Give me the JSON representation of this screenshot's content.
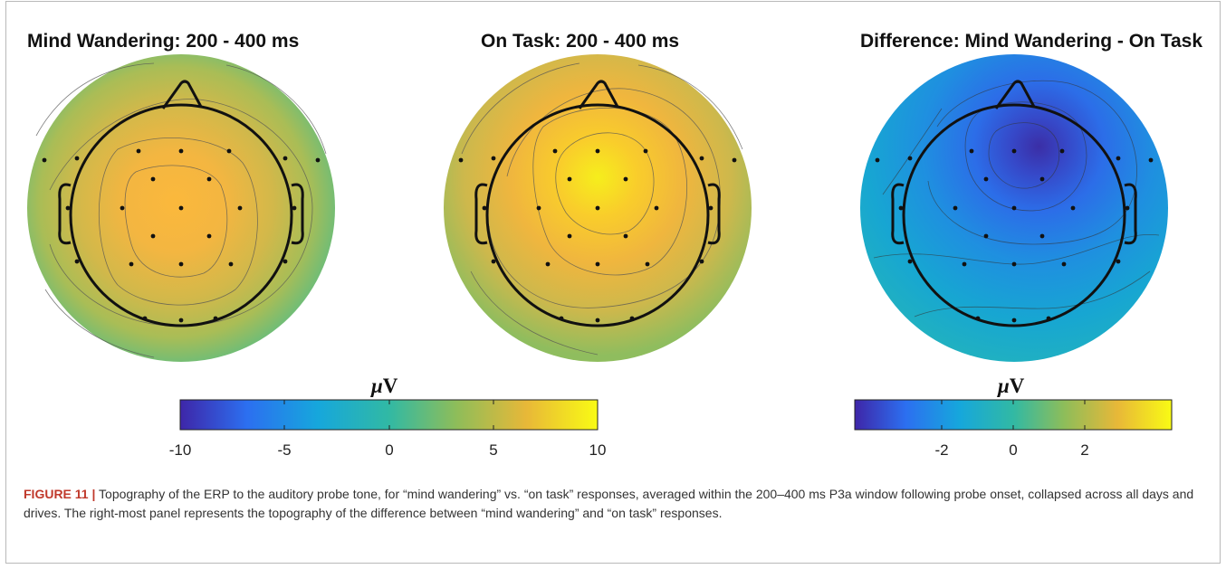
{
  "panels": [
    {
      "title": "Mind Wandering: 200 - 400 ms"
    },
    {
      "title": "On Task: 200 - 400 ms"
    },
    {
      "title": "Difference: Mind Wandering - On Task"
    }
  ],
  "colorbars": [
    {
      "unit_symbol": "μ",
      "unit_letter": "V",
      "ticks": [
        "-10",
        "-5",
        "0",
        "5",
        "10"
      ]
    },
    {
      "unit_symbol": "μ",
      "unit_letter": "V",
      "ticks": [
        "-2",
        "0",
        "2"
      ]
    }
  ],
  "caption": {
    "label": "FIGURE 11 |",
    "text": "Topography of the ERP to the auditory probe tone, for “mind wandering” vs. “on task” responses, averaged within the 200–400 ms P3a window following probe onset, collapsed across all days and drives. The right-most panel represents the topography of the difference between “mind wandering” and “on task” responses."
  },
  "colors": {
    "parula": [
      "#3e26a8",
      "#2c6ff0",
      "#16a7dc",
      "#31b9a4",
      "#8dbd5a",
      "#e8b838",
      "#f9fb14"
    ]
  }
}
